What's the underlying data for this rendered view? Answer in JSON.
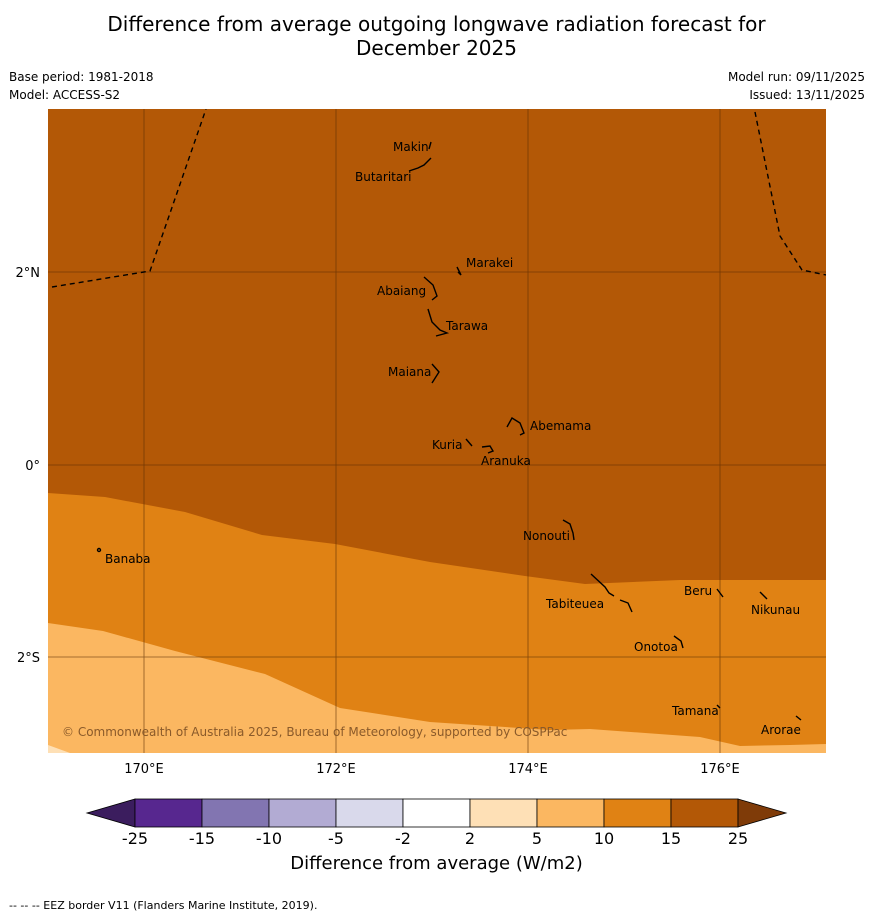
{
  "title_line1": "Difference from average outgoing longwave radiation forecast for",
  "title_line2": "December 2025",
  "base_period": "Base period: 1981-2018",
  "model": "Model: ACCESS-S2",
  "model_run": "Model run: 09/11/2025",
  "issued": "Issued: 13/11/2025",
  "copyright": "© Commonwealth of Australia 2025, Bureau of Meteorology, supported by COSPPac",
  "footnote": "--  --  -- EEZ border V11 (Flanders Marine Institute, 2019).",
  "colorbar": {
    "label": "Difference from average (W/m2)",
    "ticks": [
      "-25",
      "-15",
      "-10",
      "-5",
      "-2",
      "2",
      "5",
      "10",
      "15",
      "25"
    ],
    "colors": [
      "#3b1d5e",
      "#57278f",
      "#8275b1",
      "#b2abd3",
      "#d9d9eb",
      "#ffffff",
      "#fee0b6",
      "#fbb761",
      "#e08214",
      "#b35806",
      "#7f3b08"
    ]
  },
  "axes": {
    "lat_labels": [
      "2°N",
      "0°",
      "2°S"
    ],
    "lon_labels": [
      "170°E",
      "172°E",
      "174°E",
      "176°E"
    ]
  },
  "places": [
    "Makin",
    "Butaritari",
    "Marakei",
    "Abaiang",
    "Tarawa",
    "Maiana",
    "Abemama",
    "Kuria",
    "Aranuka",
    "Nonouti",
    "Banaba",
    "Beru",
    "Nikunau",
    "Tabiteuea",
    "Onotoa",
    "Tamana",
    "Arorae"
  ]
}
